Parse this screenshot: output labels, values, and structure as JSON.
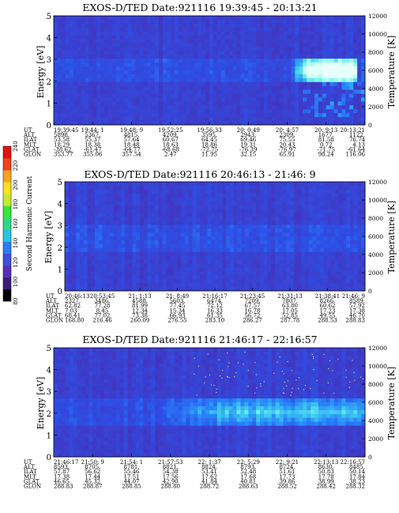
{
  "chart_data": [
    {
      "type": "heatmap",
      "title": "EXOS-D/TED   Date:921116  19:39:45 - 20:13:21",
      "ylabel": "Energy [eV]",
      "y2label": "Temperature [K]",
      "ylim": [
        0,
        5
      ],
      "y2lim": [
        0,
        12000
      ],
      "yticks": [
        "0",
        "1",
        "2",
        "3",
        "4",
        "5"
      ],
      "y2ticks": [
        "0",
        "2000",
        "4000",
        "6000",
        "8000",
        "10000",
        "12000"
      ],
      "orbit_row_labels": [
        "UT",
        "ALT",
        "ILAT",
        "MLT",
        "GLAT",
        "GLON"
      ],
      "orbit_columns": [
        [
          "19:39:45",
          "5898.",
          "53.58",
          "18.29",
          "-38.62",
          "353.77"
        ],
        [
          "19:44: 1",
          "5367.",
          "55.37",
          "18.38",
          "-61.47",
          "355.06"
        ],
        [
          "19:48: 9",
          "4815.",
          "57.64",
          "18.48",
          "-64.77",
          "357.54"
        ],
        [
          "19:52:25",
          "4209.",
          "60.67",
          "18.63",
          "-68.68",
          "2.47"
        ],
        [
          "19:56:33",
          "3595.",
          "64.45",
          "18.86",
          "-72.75",
          "11.95"
        ],
        [
          "20: 0:49",
          "2943.",
          "69.46",
          "19.31",
          "-76.39",
          "32.15"
        ],
        [
          "20: 4:57",
          "2309.",
          "75.55",
          "20.43",
          "-76.97",
          "65.91"
        ],
        [
          "20: 9:13",
          "1677.",
          "81.58",
          "0.72",
          "-71.75",
          "98.24"
        ],
        [
          "20:13:21",
          "1122.",
          "76.74",
          "4.13",
          "-61.64",
          "116.06"
        ]
      ],
      "feature": {
        "band_ev": [
          1.9,
          3.1
        ],
        "enhancement_frac": [
          0.76,
          0.97
        ]
      }
    },
    {
      "type": "heatmap",
      "title": "EXOS-D/TED   Date:921116  20:46:13 - 21:46: 9",
      "ylabel": "Energy [eV]",
      "y2label": "Temperature [K]",
      "ylim": [
        0,
        5
      ],
      "y2lim": [
        0,
        12000
      ],
      "yticks": [
        "0",
        "1",
        "2",
        "3",
        "4",
        "5"
      ],
      "y2ticks": [
        "0",
        "2000",
        "4000",
        "6000",
        "8000",
        "10000",
        "12000"
      ],
      "orbit_row_labels": [
        "UT",
        "ALT",
        "ILAT",
        "MLT",
        "GLAT",
        "GLON"
      ],
      "orbit_columns": [
        [
          "20:46:13",
          "2327.",
          "62.82",
          "7.03",
          "68.41",
          "168.80"
        ],
        [
          "20:53:45",
          "3486.",
          "77.28",
          "8.45",
          "77.02",
          "216.46"
        ],
        [
          "21: 1:13",
          "4588.",
          "81.99",
          "12.34",
          "73.38",
          "260.09"
        ],
        [
          "21: 8:49",
          "5603.",
          "77.45",
          "15.34",
          "66.93",
          "276.55"
        ],
        [
          "21:16:17",
          "6474.",
          "72.12",
          "16.33",
          "61.35",
          "283.10"
        ],
        [
          "21:23:45",
          "7209.",
          "67.57",
          "16.78",
          "56.72",
          "286.27"
        ],
        [
          "21:31:13",
          "7807.",
          "63.80",
          "17.05",
          "52.85",
          "287.78"
        ],
        [
          "21:38:41",
          "8266.",
          "60.62",
          "17.23",
          "49.55",
          "288.53"
        ],
        [
          "21:46: 9",
          "8589.",
          "57.92",
          "17.38",
          "46.70",
          "288.83"
        ]
      ],
      "feature": {
        "band_ev": [
          1.8,
          3.0
        ],
        "enhancement_frac": [
          0,
          0
        ]
      }
    },
    {
      "type": "heatmap",
      "title": "EXOS-D/TED   Date:921116  21:46:17 - 22:16:57",
      "ylabel": "Energy [eV]",
      "y2label": "Temperature [K]",
      "ylim": [
        0,
        5
      ],
      "y2lim": [
        0,
        12000
      ],
      "yticks": [
        "0",
        "1",
        "2",
        "3",
        "4",
        "5"
      ],
      "y2ticks": [
        "0",
        "2000",
        "4000",
        "6000",
        "8000",
        "10000",
        "12000"
      ],
      "orbit_row_labels": [
        "UT",
        "ALT",
        "ILAT",
        "MLT",
        "GLAT",
        "GLON"
      ],
      "orbit_columns": [
        [
          "21:46:17",
          "8593.",
          "57.87",
          "17.38",
          "46.65",
          "288.83"
        ],
        [
          "21:50: 9",
          "8705.",
          "56.62",
          "17.44",
          "45.32",
          "288.87"
        ],
        [
          "21:54: 1",
          "8781.",
          "55.46",
          "17.51",
          "44.07",
          "288.85"
        ],
        [
          "21:57:53",
          "8821.",
          "54.38",
          "17.56",
          "42.90",
          "288.80"
        ],
        [
          "22: 1:37",
          "8824.",
          "53.41",
          "17.62",
          "41.84",
          "288.72"
        ],
        [
          "22: 5:29",
          "8793.",
          "52.48",
          "17.68",
          "40.81",
          "288.63"
        ],
        [
          "22: 9:21",
          "8724.",
          "51.61",
          "17.73",
          "39.86",
          "288.52"
        ],
        [
          "22:13:13",
          "8630.",
          "50.83",
          "17.78",
          "38.99",
          "288.42"
        ],
        [
          "22:16:57",
          "8485.",
          "50.14",
          "17.84",
          "38.23",
          "288.32"
        ]
      ],
      "feature": {
        "band_ev": [
          1.4,
          2.7
        ],
        "enhancement_frac": [
          0.3,
          1.0
        ]
      }
    }
  ],
  "colorbar": {
    "label": "Second Harmonic Current",
    "ticks": [
      "80",
      "100",
      "120",
      "140",
      "160",
      "180",
      "200",
      "220",
      "240"
    ],
    "range": [
      80,
      240
    ]
  }
}
